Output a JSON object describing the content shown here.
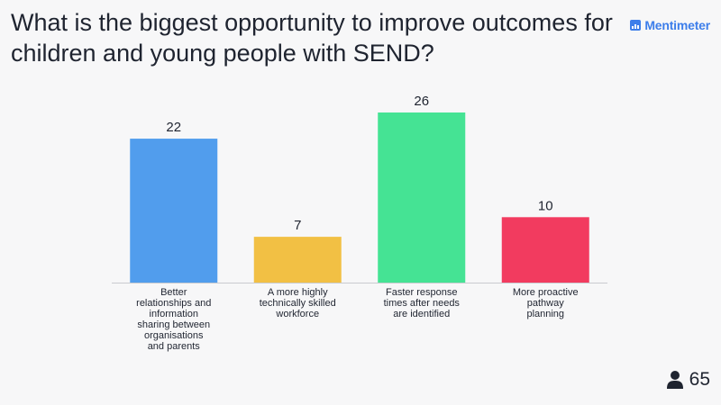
{
  "header": {
    "title": "What is the biggest opportunity to improve outcomes for children and young people with SEND?",
    "brand": "Mentimeter"
  },
  "footer": {
    "response_count": "65",
    "icon": "person-icon"
  },
  "colors": {
    "blue": "#519ded",
    "yellow": "#f2c044",
    "green": "#45e394",
    "red": "#f23b5f",
    "accent": "#3d7eea"
  },
  "chart_data": {
    "type": "bar",
    "title": "",
    "xlabel": "",
    "ylabel": "",
    "ylim": [
      0,
      26
    ],
    "grid": false,
    "categories": [
      "Better relationships and information sharing between organisations and parents",
      "A more highly technically skilled workforce",
      "Faster response times after needs are identified",
      "More proactive pathway planning"
    ],
    "category_lines": [
      [
        "Better",
        "relationships and",
        "information",
        "sharing between",
        "organisations",
        "and parents"
      ],
      [
        "A more highly",
        "technically skilled",
        "workforce"
      ],
      [
        "Faster response",
        "times after needs",
        "are identified"
      ],
      [
        "More proactive",
        "pathway",
        "planning"
      ]
    ],
    "values": [
      22,
      7,
      26,
      10
    ],
    "bar_colors": [
      "#519ded",
      "#f2c044",
      "#45e394",
      "#f23b5f"
    ]
  }
}
